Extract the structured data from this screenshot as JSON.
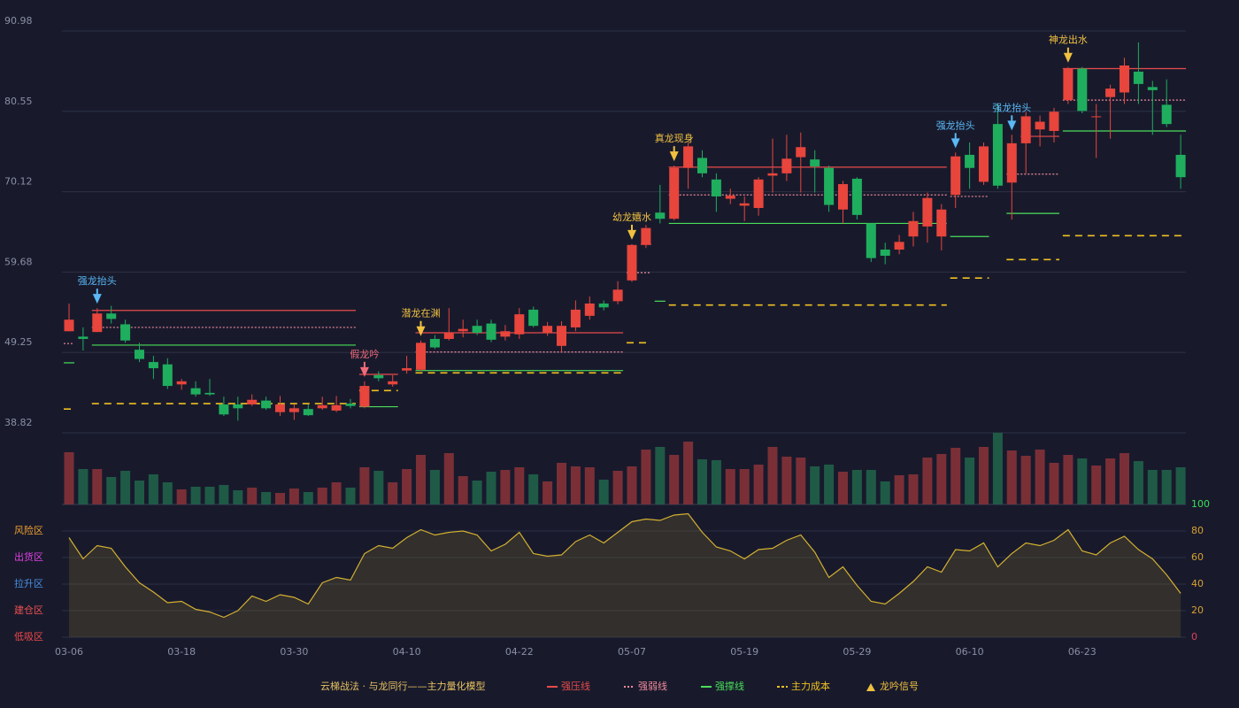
{
  "chart_data": {
    "type": "candlestick",
    "categories": [
      "03-06",
      null,
      null,
      null,
      null,
      null,
      null,
      null,
      "03-18",
      null,
      null,
      null,
      null,
      null,
      null,
      null,
      "03-30",
      null,
      null,
      null,
      null,
      null,
      null,
      null,
      "04-10",
      null,
      null,
      null,
      null,
      null,
      null,
      null,
      "04-22",
      null,
      null,
      null,
      null,
      null,
      null,
      null,
      "05-07",
      null,
      null,
      null,
      null,
      null,
      null,
      null,
      "05-19",
      null,
      null,
      null,
      null,
      null,
      null,
      null,
      "05-29",
      null,
      null,
      null,
      null,
      null,
      null,
      null,
      "06-10",
      null,
      null,
      null,
      null,
      null,
      null,
      null,
      "06-23",
      null,
      null,
      null,
      null,
      null,
      null,
      null
    ],
    "open": [
      52.0,
      51.3,
      51.9,
      54.3,
      52.9,
      49.6,
      48.0,
      47.7,
      45.1,
      44.6,
      44.0,
      42.5,
      42.5,
      42.5,
      43.0,
      41.5,
      41.5,
      41.9,
      42.0,
      41.7,
      42.6,
      42.2,
      46.3,
      45.1,
      46.9,
      47.0,
      51.0,
      51.0,
      52.0,
      52.7,
      53.0,
      51.3,
      51.6,
      54.8,
      51.8,
      50.1,
      52.5,
      54.0,
      55.6,
      55.9,
      58.6,
      63.2,
      67.4,
      66.6,
      73.2,
      74.5,
      71.7,
      69.2,
      68.3,
      68.0,
      72.2,
      72.5,
      74.6,
      74.3,
      73.2,
      67.8,
      71.8,
      66.0,
      62.6,
      62.6,
      64.3,
      65.6,
      64.3,
      69.7,
      74.9,
      71.4,
      78.9,
      71.3,
      76.4,
      78.2,
      78.0,
      82.0,
      86.1,
      79.8,
      82.4,
      83.0,
      85.7,
      83.7,
      81.4,
      74.9
    ],
    "high": [
      55.6,
      52.5,
      55.0,
      55.3,
      53.5,
      50.5,
      48.8,
      48.5,
      45.8,
      45.5,
      45.8,
      43.5,
      43.5,
      43.8,
      43.5,
      43.6,
      42.5,
      42.5,
      43.5,
      43.6,
      43.2,
      45.5,
      46.8,
      46.3,
      48.8,
      50.8,
      51.5,
      55.0,
      53.5,
      53.5,
      53.5,
      52.8,
      55.0,
      55.2,
      53.2,
      53.3,
      56.0,
      56.5,
      56.0,
      58.5,
      63.3,
      65.8,
      71.0,
      73.5,
      76.5,
      75.5,
      72.5,
      70.5,
      69.5,
      72.0,
      77.0,
      77.5,
      77.8,
      75.5,
      73.5,
      71.5,
      72.0,
      66.0,
      63.5,
      64.5,
      67.5,
      70.0,
      68.5,
      75.2,
      76.5,
      76.5,
      81.5,
      77.5,
      80.5,
      80.0,
      81.0,
      86.3,
      86.3,
      81.5,
      84.0,
      87.5,
      89.5,
      84.5,
      84.7,
      77.5
    ],
    "low": [
      52.0,
      49.5,
      51.9,
      53.0,
      50.5,
      48.0,
      45.8,
      44.5,
      44.4,
      43.5,
      43.6,
      41.0,
      40.4,
      42.3,
      41.8,
      41.0,
      40.5,
      41.0,
      41.8,
      41.5,
      42.0,
      42.0,
      45.5,
      44.8,
      46.5,
      46.8,
      49.7,
      50.8,
      51.2,
      51.5,
      50.6,
      50.8,
      51.0,
      52.5,
      51.4,
      49.3,
      52.0,
      53.5,
      54.7,
      55.5,
      58.4,
      62.8,
      66.0,
      66.4,
      70.5,
      72.0,
      67.5,
      68.5,
      66.3,
      67.0,
      70.0,
      71.5,
      70.0,
      70.0,
      67.5,
      66.0,
      66.5,
      61.0,
      60.7,
      62.0,
      63.0,
      63.5,
      62.5,
      68.0,
      70.5,
      71.0,
      70.5,
      66.5,
      72.5,
      76.0,
      76.5,
      81.5,
      80.3,
      74.5,
      77.0,
      81.5,
      81.5,
      77.5,
      78.5,
      70.5
    ],
    "close": [
      53.5,
      51.0,
      54.3,
      53.6,
      50.8,
      48.4,
      47.2,
      44.9,
      45.5,
      43.8,
      43.8,
      41.2,
      42.0,
      43.1,
      42.0,
      42.5,
      42.0,
      41.1,
      42.4,
      42.4,
      42.3,
      44.9,
      45.9,
      45.5,
      47.2,
      50.5,
      49.9,
      51.8,
      52.3,
      51.8,
      50.9,
      52.0,
      54.2,
      52.7,
      52.7,
      52.7,
      54.8,
      55.6,
      55.1,
      57.4,
      63.2,
      65.4,
      66.6,
      73.2,
      76.0,
      72.5,
      69.5,
      69.6,
      68.6,
      71.7,
      72.5,
      74.4,
      75.9,
      73.4,
      68.4,
      71.1,
      67.1,
      61.5,
      61.8,
      63.6,
      66.3,
      69.3,
      67.8,
      74.7,
      73.2,
      76.0,
      70.9,
      76.4,
      79.9,
      79.2,
      80.5,
      86.1,
      80.6,
      79.9,
      83.5,
      86.5,
      84.1,
      83.3,
      78.9,
      72.0
    ],
    "up_color": "#e8453c",
    "down_color": "#1fae5e",
    "ylim": [
      38.82,
      90.98
    ],
    "yticks": [
      38.82,
      49.25,
      59.68,
      70.12,
      80.55,
      90.98
    ],
    "grid": true,
    "volume": {
      "values": [
        59,
        40,
        40,
        31,
        38,
        27,
        34,
        25,
        17,
        20,
        20,
        22,
        16,
        19,
        14,
        13,
        18,
        14,
        19,
        25,
        19,
        42,
        38,
        25,
        40,
        56,
        39,
        58,
        32,
        27,
        37,
        39,
        42,
        34,
        26,
        47,
        43,
        42,
        28,
        38,
        43,
        62,
        65,
        56,
        71,
        51,
        50,
        40,
        40,
        45,
        65,
        54,
        53,
        43,
        45,
        37,
        39,
        39,
        26,
        33,
        34,
        53,
        57,
        64,
        53,
        65,
        81,
        61,
        55,
        62,
        47,
        56,
        52,
        44,
        52,
        58,
        49,
        39,
        39,
        42
      ],
      "up_color": "#7a2f37",
      "down_color": "#1f5a46"
    },
    "oscillator": {
      "values": [
        75,
        59,
        69,
        67,
        53,
        41,
        34,
        26,
        27,
        21,
        19,
        15,
        20,
        31,
        27,
        32,
        30,
        25,
        41,
        45,
        43,
        63,
        69,
        67,
        75,
        81,
        77,
        79,
        80,
        77,
        65,
        70,
        79,
        63,
        61,
        62,
        72,
        77,
        71,
        79,
        87,
        89,
        88,
        92,
        93,
        79,
        68,
        65,
        59,
        66,
        67,
        73,
        77,
        64,
        45,
        53,
        39,
        27,
        25,
        33,
        42,
        53,
        49,
        66,
        65,
        71,
        53,
        63,
        71,
        69,
        73,
        81,
        65,
        62,
        71,
        76,
        66,
        59,
        47,
        33
      ],
      "color": "#d4b030",
      "ylim": [
        0,
        100
      ],
      "yticks": [
        0,
        20,
        40,
        60,
        80,
        100
      ],
      "ytick_colors": [
        "#e0405a",
        "#d9a030",
        "#d9a030",
        "#d9a030",
        "#d9a030",
        "#3adf5a"
      ],
      "zones": [
        {
          "label": "风险区",
          "value": 80,
          "color": "#f0a030"
        },
        {
          "label": "出货区",
          "value": 60,
          "color": "#e040e0"
        },
        {
          "label": "拉升区",
          "value": 40,
          "color": "#4a90e2"
        },
        {
          "label": "建仓区",
          "value": 20,
          "color": "#f05050"
        },
        {
          "label": "低吸区",
          "value": 0,
          "color": "#f04848"
        }
      ]
    },
    "legend_title": "云梯战法 · 与龙同行——主力量化模型",
    "levels": [
      {
        "label": "强压线",
        "color": "#e84a4a",
        "dash": "none",
        "segments": [
          [
            2,
            20,
            54.7
          ],
          [
            21,
            23,
            46.4
          ],
          [
            25,
            39,
            51.8
          ],
          [
            41,
            41,
            63.3
          ],
          [
            43,
            62,
            73.3
          ],
          [
            68,
            70,
            77.3
          ],
          [
            71,
            79,
            86.1
          ]
        ]
      },
      {
        "label": "强弱线",
        "color": "#f08a9a",
        "dash": "2,2",
        "segments": [
          [
            0,
            0,
            50.4
          ],
          [
            2,
            20,
            52.5
          ],
          [
            25,
            39,
            49.3
          ],
          [
            40,
            41,
            59.6
          ],
          [
            43,
            62,
            69.7
          ],
          [
            63,
            65,
            69.5
          ],
          [
            67,
            70,
            72.4
          ],
          [
            71,
            79,
            82.0
          ]
        ]
      },
      {
        "label": "强撑线",
        "color": "#4ade5a",
        "dash": "none",
        "segments": [
          [
            0,
            0,
            47.9
          ],
          [
            2,
            20,
            50.2
          ],
          [
            21,
            23,
            42.2
          ],
          [
            25,
            39,
            46.9
          ],
          [
            42,
            42,
            55.9
          ],
          [
            43,
            62,
            66.0
          ],
          [
            63,
            65,
            64.3
          ],
          [
            67,
            70,
            67.3
          ],
          [
            71,
            79,
            78.0
          ]
        ]
      },
      {
        "label": "主力成本",
        "color": "#f0c020",
        "dash": "8,6",
        "segments": [
          [
            0,
            0,
            41.9
          ],
          [
            2,
            20,
            42.6
          ],
          [
            21,
            23,
            44.3
          ],
          [
            25,
            39,
            46.6
          ],
          [
            40,
            41,
            50.5
          ],
          [
            43,
            62,
            55.4
          ],
          [
            63,
            65,
            58.9
          ],
          [
            67,
            70,
            61.3
          ],
          [
            71,
            79,
            64.4
          ]
        ]
      }
    ],
    "signal_legend": {
      "label": "龙吟信号",
      "color": "#f0c040"
    },
    "signals": [
      {
        "index": 2,
        "label": "强龙抬头",
        "color": "#5ab8f5"
      },
      {
        "index": 21,
        "label": "假龙吟",
        "color": "#f06a7a"
      },
      {
        "index": 25,
        "label": "潜龙在渊",
        "color": "#f0c040"
      },
      {
        "index": 40,
        "label": "幼龙嬉水",
        "color": "#f0c040"
      },
      {
        "index": 43,
        "label": "真龙现身",
        "color": "#f0c040"
      },
      {
        "index": 63,
        "label": "强龙抬头",
        "color": "#5ab8f5"
      },
      {
        "index": 67,
        "label": "强龙抬头",
        "color": "#5ab8f5"
      },
      {
        "index": 71,
        "label": "神龙出水",
        "color": "#f0c040"
      }
    ]
  }
}
